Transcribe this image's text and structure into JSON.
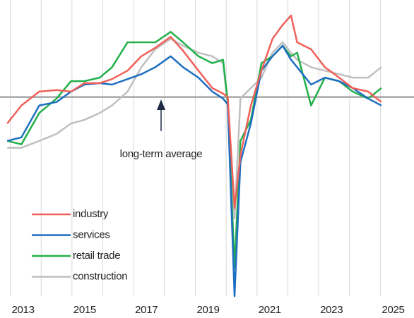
{
  "chart_data": {
    "type": "line",
    "annotation": "long-term average",
    "reference_line": 0,
    "x": [
      2012.9,
      2013.36,
      2013.94,
      2014.5,
      2014.97,
      2015.4,
      2015.9,
      2016.3,
      2016.8,
      2017.25,
      2017.7,
      2018.2,
      2018.6,
      2019.1,
      2019.55,
      2019.9,
      2020.05,
      2020.27,
      2020.46,
      2020.8,
      2021.14,
      2021.5,
      2021.83,
      2022.1,
      2022.3,
      2022.75,
      2023.2,
      2023.66,
      2024.1,
      2024.6,
      2025.03
    ],
    "series": [
      {
        "name": "industry",
        "color": "#f0605a",
        "values": [
          -5.3,
          -1.7,
          1.1,
          1.4,
          1.1,
          2.8,
          2.8,
          3.6,
          5.3,
          8.2,
          9.9,
          12.1,
          9.3,
          5.3,
          1.8,
          0.7,
          0.0,
          -22.3,
          -11.7,
          -1.7,
          5.3,
          11.7,
          14.5,
          16.4,
          11.0,
          9.6,
          6.0,
          3.9,
          1.8,
          1.1,
          -1.0
        ]
      },
      {
        "name": "services",
        "color": "#1f6fc0",
        "values": [
          -8.8,
          -8.1,
          -1.7,
          -1.0,
          1.1,
          2.5,
          2.8,
          2.5,
          3.6,
          4.6,
          6.0,
          8.2,
          6.0,
          3.9,
          1.1,
          -0.3,
          -1.5,
          -40.0,
          -13.1,
          -5.3,
          5.3,
          8.2,
          10.3,
          7.5,
          6.0,
          2.5,
          3.9,
          3.2,
          1.8,
          -0.3,
          -1.7
        ]
      },
      {
        "name": "retail trade",
        "color": "#22b04a",
        "values": [
          -8.8,
          -9.5,
          -3.2,
          -0.3,
          3.2,
          3.2,
          3.9,
          6.0,
          11.0,
          11.0,
          11.0,
          13.1,
          11.0,
          8.2,
          6.8,
          7.5,
          -1.0,
          -34.3,
          -8.8,
          -4.6,
          6.8,
          8.2,
          10.3,
          8.2,
          8.9,
          -1.7,
          3.9,
          3.2,
          1.1,
          -0.3,
          1.8
        ]
      },
      {
        "name": "construction",
        "color": "#bfbfbf",
        "values": [
          -10.2,
          -10.2,
          -8.8,
          -7.4,
          -5.3,
          -4.6,
          -3.2,
          -1.7,
          1.1,
          6.0,
          9.6,
          11.7,
          10.3,
          8.9,
          8.2,
          6.8,
          -1.7,
          -24.4,
          -0.3,
          1.8,
          3.9,
          8.9,
          11.0,
          8.9,
          7.5,
          6.0,
          5.3,
          4.6,
          3.9,
          3.9,
          6.0
        ]
      }
    ],
    "xlim": [
      2012.85,
      2025.95
    ],
    "xticks": [
      2013,
      2015,
      2017,
      2019,
      2021,
      2023,
      2025
    ],
    "minor_xticks": [
      2013,
      2014,
      2015,
      2016,
      2017,
      2018,
      2019,
      2020,
      2021,
      2022,
      2023,
      2024,
      2025
    ],
    "ylim": [
      -40,
      19.5
    ],
    "grid": true,
    "legend": "lower left"
  }
}
